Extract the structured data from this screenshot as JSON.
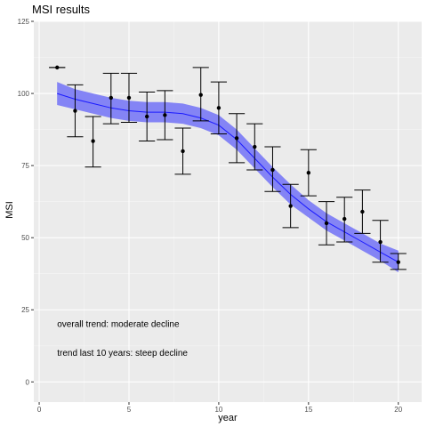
{
  "chart_data": {
    "type": "line",
    "title": "MSI results",
    "xlabel": "year",
    "ylabel": "MSI",
    "xlim": [
      -0.3,
      21.3
    ],
    "ylim": [
      -7,
      125
    ],
    "xticks": [
      0,
      5,
      10,
      15,
      20
    ],
    "yticks": [
      0,
      25,
      50,
      75,
      100,
      125
    ],
    "grid": true,
    "points": {
      "x": [
        1,
        2,
        3,
        4,
        5,
        6,
        7,
        8,
        9,
        10,
        11,
        12,
        13,
        14,
        15,
        16,
        17,
        18,
        19,
        20
      ],
      "y": [
        109,
        94,
        83.5,
        98.5,
        98.5,
        92,
        92.5,
        80,
        99.5,
        95,
        84.5,
        81.5,
        73.5,
        61,
        72.5,
        55,
        56.5,
        59,
        48.5,
        41.5
      ],
      "lower": [
        109,
        85,
        74.5,
        89.5,
        90,
        83.5,
        84,
        72,
        90.5,
        86,
        76,
        73.5,
        66,
        53.5,
        64.5,
        47.5,
        48.5,
        51.5,
        41.5,
        39
      ],
      "upper": [
        109,
        103,
        92,
        107,
        107,
        100.5,
        101,
        88,
        109,
        104,
        93,
        89.5,
        81.5,
        68.5,
        80.5,
        62.5,
        64,
        66.5,
        56,
        44.5
      ]
    },
    "trend": {
      "x": [
        1,
        2,
        3,
        4,
        5,
        6,
        7,
        8,
        9,
        10,
        11,
        12,
        13,
        14,
        15,
        16,
        17,
        18,
        19,
        20
      ],
      "y": [
        100,
        98,
        96.5,
        95,
        94,
        93.5,
        93.5,
        93,
        91.5,
        89,
        84,
        77.5,
        71,
        65,
        60,
        55.5,
        52,
        48.5,
        45,
        41.5
      ],
      "lower": [
        96,
        94.5,
        93,
        91.5,
        90.5,
        90,
        90,
        89.5,
        88,
        85.5,
        80.5,
        74,
        67.5,
        61.5,
        57,
        52.5,
        49,
        45.5,
        42,
        38
      ],
      "upper": [
        104,
        101.5,
        100,
        98.5,
        97.5,
        97,
        97,
        96.5,
        95,
        92.5,
        87.5,
        81,
        74.5,
        68.5,
        63,
        58.5,
        55,
        51.5,
        48,
        45.5
      ]
    },
    "annotations": [
      "overall trend: moderate decline",
      "trend last 10 years: steep decline"
    ],
    "annotation_x": 1,
    "annotation_y": [
      20,
      10
    ],
    "colors": {
      "panel": "#ebebeb",
      "grid_major": "#ffffff",
      "grid_minor": "#f5f5f5",
      "band": "#7b7bf5",
      "trend_line": "#1a1aff",
      "points": "#000000",
      "error_bars": "#000000"
    }
  }
}
